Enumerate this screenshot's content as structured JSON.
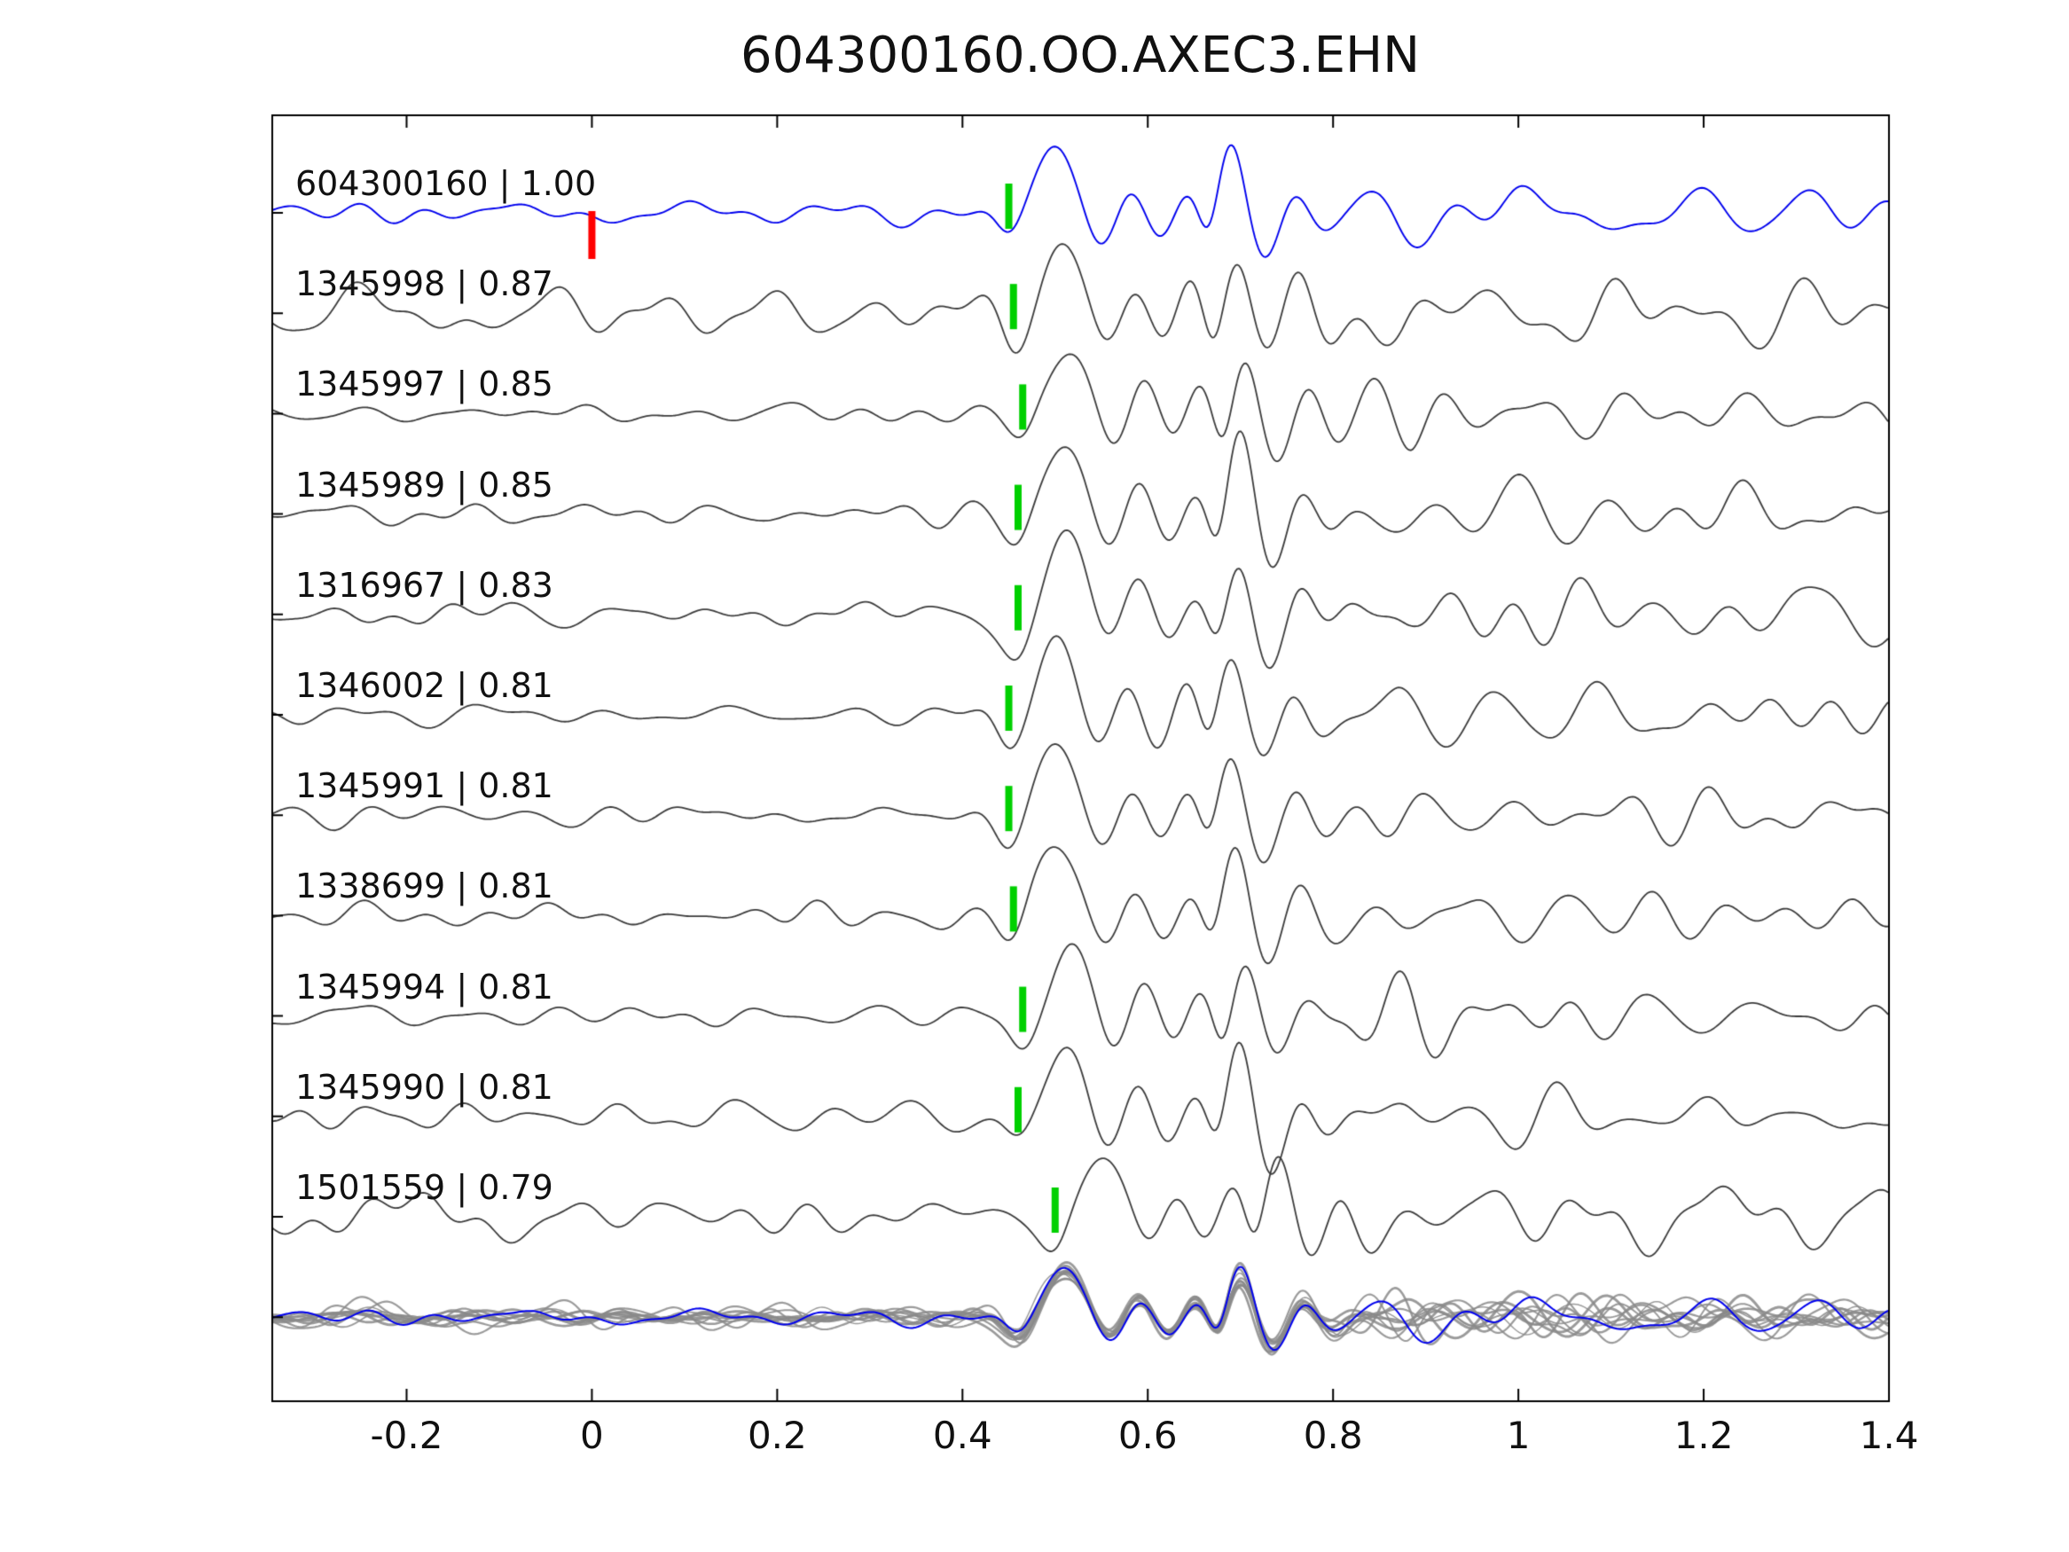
{
  "title": "604300160.OO.AXEC3.EHN",
  "chart_data": {
    "type": "line",
    "title": "604300160.OO.AXEC3.EHN",
    "subtitle": "",
    "xlabel": "",
    "ylabel": "",
    "xlim": [
      -0.345,
      1.4
    ],
    "x_ticks": [
      -0.2,
      0,
      0.2,
      0.4,
      0.6,
      0.8,
      1,
      1.2,
      1.4
    ],
    "x_tick_labels": [
      "-0.2",
      "0",
      "0.2",
      "0.4",
      "0.6",
      "0.8",
      "1",
      "1.2",
      "1.4"
    ],
    "grid": false,
    "legend": null,
    "colors": {
      "background": "#ffffff",
      "axis": "#000000",
      "reference_trace": "#0000ee",
      "trace": "#3c3c3c",
      "overlay_trace": "#8a8a8a",
      "pick_marker": "#00d000",
      "reference_marker": "#ff0000",
      "text": "#111111"
    },
    "traces": [
      {
        "id": "604300160",
        "correlation": 1.0,
        "label": "604300160 | 1.00",
        "pick_time": 0.45,
        "reference_marker_time": 0.0,
        "is_reference": true
      },
      {
        "id": "1345998",
        "correlation": 0.87,
        "label": "1345998 | 0.87",
        "pick_time": 0.455,
        "is_reference": false
      },
      {
        "id": "1345997",
        "correlation": 0.85,
        "label": "1345997 | 0.85",
        "pick_time": 0.465,
        "is_reference": false
      },
      {
        "id": "1345989",
        "correlation": 0.85,
        "label": "1345989 | 0.85",
        "pick_time": 0.46,
        "is_reference": false
      },
      {
        "id": "1316967",
        "correlation": 0.83,
        "label": "1316967 | 0.83",
        "pick_time": 0.46,
        "is_reference": false
      },
      {
        "id": "1346002",
        "correlation": 0.81,
        "label": "1346002 | 0.81",
        "pick_time": 0.45,
        "is_reference": false
      },
      {
        "id": "1345991",
        "correlation": 0.81,
        "label": "1345991 | 0.81",
        "pick_time": 0.45,
        "is_reference": false
      },
      {
        "id": "1338699",
        "correlation": 0.81,
        "label": "1338699 | 0.81",
        "pick_time": 0.455,
        "is_reference": false
      },
      {
        "id": "1345994",
        "correlation": 0.81,
        "label": "1345994 | 0.81",
        "pick_time": 0.465,
        "is_reference": false
      },
      {
        "id": "1345990",
        "correlation": 0.81,
        "label": "1345990 | 0.81",
        "pick_time": 0.46,
        "is_reference": false
      },
      {
        "id": "1501559",
        "correlation": 0.79,
        "label": "1501559 | 0.79",
        "pick_time": 0.5,
        "is_reference": false
      }
    ],
    "overlay_row": {
      "description": "all traces superimposed and aligned on their picks; reference trace in blue",
      "align_time": 0.46
    }
  }
}
